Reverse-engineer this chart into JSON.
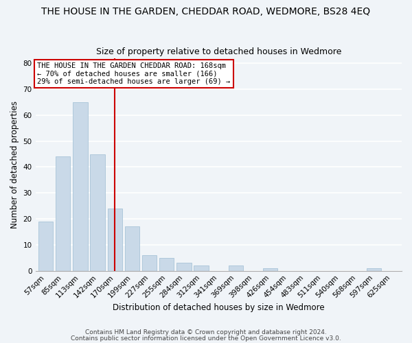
{
  "title": "THE HOUSE IN THE GARDEN, CHEDDAR ROAD, WEDMORE, BS28 4EQ",
  "subtitle": "Size of property relative to detached houses in Wedmore",
  "xlabel": "Distribution of detached houses by size in Wedmore",
  "ylabel": "Number of detached properties",
  "bar_labels": [
    "57sqm",
    "85sqm",
    "113sqm",
    "142sqm",
    "170sqm",
    "199sqm",
    "227sqm",
    "255sqm",
    "284sqm",
    "312sqm",
    "341sqm",
    "369sqm",
    "398sqm",
    "426sqm",
    "454sqm",
    "483sqm",
    "511sqm",
    "540sqm",
    "568sqm",
    "597sqm",
    "625sqm"
  ],
  "bar_values": [
    19,
    44,
    65,
    45,
    24,
    17,
    6,
    5,
    3,
    2,
    0,
    2,
    0,
    1,
    0,
    0,
    0,
    0,
    0,
    1,
    0
  ],
  "bar_color": "#c9d9e8",
  "bar_edge_color": "#a8c4d8",
  "vline_x": 4,
  "vline_color": "#cc0000",
  "annotation_title": "THE HOUSE IN THE GARDEN CHEDDAR ROAD: 168sqm",
  "annotation_line1": "← 70% of detached houses are smaller (166)",
  "annotation_line2": "29% of semi-detached houses are larger (69) →",
  "annotation_box_color": "#ffffff",
  "annotation_box_edge": "#cc0000",
  "ylim": [
    0,
    82
  ],
  "yticks": [
    0,
    10,
    20,
    30,
    40,
    50,
    60,
    70,
    80
  ],
  "footer1": "Contains HM Land Registry data © Crown copyright and database right 2024.",
  "footer2": "Contains public sector information licensed under the Open Government Licence v3.0.",
  "background_color": "#f0f4f8",
  "grid_color": "#ffffff",
  "title_fontsize": 10,
  "subtitle_fontsize": 9,
  "axis_label_fontsize": 8.5,
  "tick_fontsize": 7.5,
  "annotation_fontsize": 7.5,
  "footer_fontsize": 6.5
}
